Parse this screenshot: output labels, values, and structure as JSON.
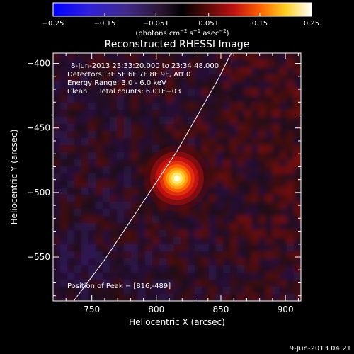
{
  "chart_data": {
    "type": "heatmap",
    "title": "Reconstructed RHESSI Image",
    "xlabel": "Heliocentric X (arcsec)",
    "ylabel": "Heliocentric Y (arcsec)",
    "xlim": [
      720,
      912
    ],
    "ylim": [
      -584,
      -392
    ],
    "xticks": [
      750,
      800,
      850,
      900
    ],
    "yticks": [
      -400,
      -450,
      -500,
      -550
    ],
    "xtick_labels": [
      "750",
      "800",
      "850",
      "900"
    ],
    "ytick_labels": [
      "−400",
      "−450",
      "−500",
      "−550"
    ],
    "colorbar": {
      "range": [
        -0.25,
        0.25
      ],
      "ticks": [
        -0.25,
        -0.15,
        -0.051,
        0.051,
        0.15,
        0.25
      ],
      "tick_labels": [
        "−0.25",
        "−0.15",
        "−0.051",
        "0.051",
        "0.15",
        "0.25"
      ],
      "units_parts": [
        {
          "text": "(photons cm",
          "sup": false
        },
        {
          "text": "−2",
          "sup": true
        },
        {
          "text": " s",
          "sup": false
        },
        {
          "text": "−1",
          "sup": true
        },
        {
          "text": " asec",
          "sup": false
        },
        {
          "text": "−2",
          "sup": true
        },
        {
          "text": ")",
          "sup": false
        }
      ]
    },
    "source": {
      "x": 816,
      "y": -489,
      "peak": 0.25,
      "sigma_arcsec": 8
    },
    "limb_curve": [
      [
        736,
        -584
      ],
      [
        760,
        -552
      ],
      [
        784,
        -516
      ],
      [
        800,
        -492
      ],
      [
        816,
        -468
      ],
      [
        832,
        -440
      ],
      [
        848,
        -412
      ],
      [
        858,
        -392
      ]
    ],
    "annotations": [
      "8-Jun-2013 23:33:20.000 to 23:34:48.000",
      "Detectors: 3F 5F 6F 7F 8F 9F, Att 0",
      "Energy Range: 3.0 - 6.0 keV",
      "Clean     Total counts: 6.01E+03"
    ],
    "peak_label": "Position of Peak = [816,-489]",
    "timestamp": "9-Jun-2013 04:21",
    "colors": {
      "background": "#000000",
      "text": "#ffffff",
      "limb": "#ffffff"
    }
  }
}
